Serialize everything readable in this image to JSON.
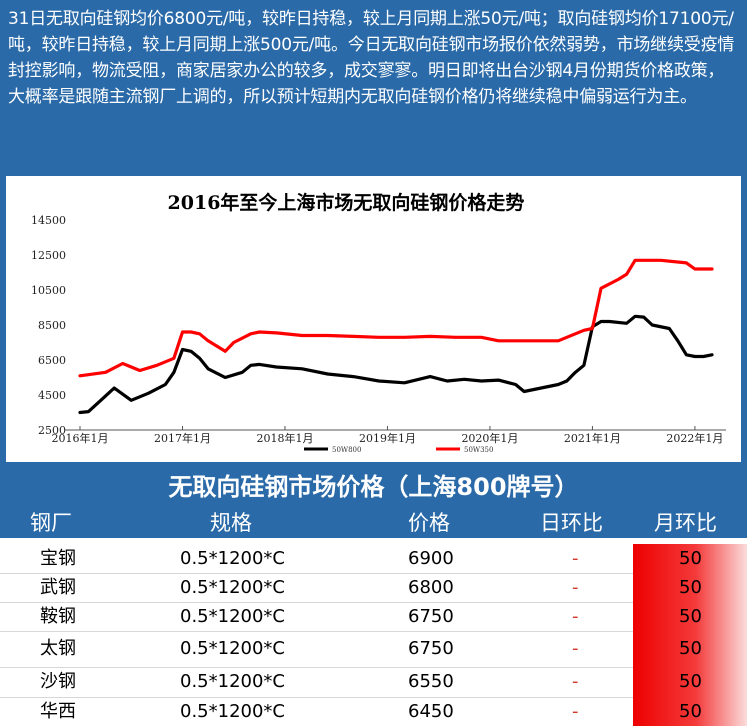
{
  "summary": {
    "text": "31日无取向硅钢均价6800元/吨，较昨日持稳，较上月同期上涨50元/吨；取向硅钢均价17100元/吨，较昨日持稳，较上月同期上涨500元/吨。今日无取向硅钢市场报价依然弱势，市场继续受疫情封控影响，物流受阻，商家居家办公的较多，成交寥寥。明日即将出台沙钢4月份期货价格政策，大概率是跟随主流钢厂上调的，所以预计短期内无取向硅钢价格仍将继续稳中偏弱运行为主。"
  },
  "chart_data": {
    "type": "line",
    "title": "2016年至今上海市场无取向硅钢价格走势",
    "x_ticks": [
      "2016年1月",
      "2017年1月",
      "2018年1月",
      "2019年1月",
      "2020年1月",
      "2021年1月",
      "2022年1月"
    ],
    "y_ticks": [
      2500,
      4500,
      6500,
      8500,
      10500,
      12500,
      14500
    ],
    "ylim": [
      2500,
      14500
    ],
    "xlim": [
      "2016-01",
      "2022-03"
    ],
    "grid": false,
    "legend_position": "bottom",
    "series": [
      {
        "name": "50W800",
        "color": "#000000",
        "x": [
          "2016-01",
          "2016-02",
          "2016-04",
          "2016-05",
          "2016-07",
          "2016-09",
          "2016-11",
          "2016-12",
          "2017-01",
          "2017-02",
          "2017-03",
          "2017-04",
          "2017-06",
          "2017-08",
          "2017-09",
          "2017-10",
          "2017-12",
          "2018-03",
          "2018-06",
          "2018-09",
          "2018-12",
          "2019-03",
          "2019-06",
          "2019-08",
          "2019-10",
          "2019-12",
          "2020-02",
          "2020-04",
          "2020-05",
          "2020-07",
          "2020-09",
          "2020-10",
          "2020-11",
          "2020-12",
          "2021-01",
          "2021-02",
          "2021-03",
          "2021-05",
          "2021-06",
          "2021-07",
          "2021-08",
          "2021-10",
          "2021-11",
          "2021-12",
          "2022-01",
          "2022-02",
          "2022-03"
        ],
        "values": [
          3500,
          3550,
          4450,
          4900,
          4200,
          4600,
          5100,
          5800,
          7100,
          7000,
          6600,
          6000,
          5500,
          5800,
          6200,
          6250,
          6100,
          6000,
          5700,
          5550,
          5300,
          5200,
          5550,
          5300,
          5400,
          5300,
          5350,
          5100,
          4700,
          4900,
          5100,
          5300,
          5800,
          6200,
          8400,
          8700,
          8700,
          8600,
          9000,
          8950,
          8500,
          8300,
          7600,
          6800,
          6700,
          6700,
          6800
        ]
      },
      {
        "name": "50W350",
        "color": "#ff0000",
        "x": [
          "2016-01",
          "2016-04",
          "2016-06",
          "2016-08",
          "2016-10",
          "2016-12",
          "2017-01",
          "2017-02",
          "2017-03",
          "2017-04",
          "2017-06",
          "2017-07",
          "2017-09",
          "2017-10",
          "2017-12",
          "2018-03",
          "2018-06",
          "2018-09",
          "2018-12",
          "2019-03",
          "2019-06",
          "2019-09",
          "2019-12",
          "2020-02",
          "2020-04",
          "2020-06",
          "2020-09",
          "2020-10",
          "2020-12",
          "2021-01",
          "2021-02",
          "2021-04",
          "2021-05",
          "2021-06",
          "2021-09",
          "2021-12",
          "2022-01",
          "2022-03"
        ],
        "values": [
          5600,
          5800,
          6300,
          5900,
          6200,
          6600,
          8100,
          8100,
          8000,
          7600,
          7000,
          7500,
          8000,
          8100,
          8050,
          7900,
          7900,
          7850,
          7800,
          7800,
          7850,
          7800,
          7800,
          7600,
          7600,
          7600,
          7600,
          7800,
          8200,
          8300,
          10600,
          11100,
          11400,
          12200,
          12200,
          12050,
          11700,
          11700
        ]
      }
    ]
  },
  "table": {
    "title": "无取向硅钢市场价格（上海800牌号）",
    "headers": {
      "mill": "钢厂",
      "spec": "规格",
      "price": "价格",
      "dod": "日环比",
      "mom": "月环比"
    },
    "rows": [
      {
        "mill": "宝钢",
        "spec": "0.5*1200*C",
        "price": "6900",
        "dod": "-",
        "mom": "50"
      },
      {
        "mill": "武钢",
        "spec": "0.5*1200*C",
        "price": "6800",
        "dod": "-",
        "mom": "50"
      },
      {
        "mill": "鞍钢",
        "spec": "0.5*1200*C",
        "price": "6750",
        "dod": "-",
        "mom": "50"
      },
      {
        "mill": "太钢",
        "spec": "0.5*1200*C",
        "price": "6750",
        "dod": "-",
        "mom": "50"
      },
      {
        "mill": "沙钢",
        "spec": "0.5*1200*C",
        "price": "6550",
        "dod": "-",
        "mom": "50"
      },
      {
        "mill": "华西",
        "spec": "0.5*1200*C",
        "price": "6450",
        "dod": "-",
        "mom": "50"
      }
    ]
  },
  "colors": {
    "banner": "#2a6aa8",
    "series_black": "#000000",
    "series_red": "#ff0000",
    "mom_cell": "#ee0000"
  }
}
